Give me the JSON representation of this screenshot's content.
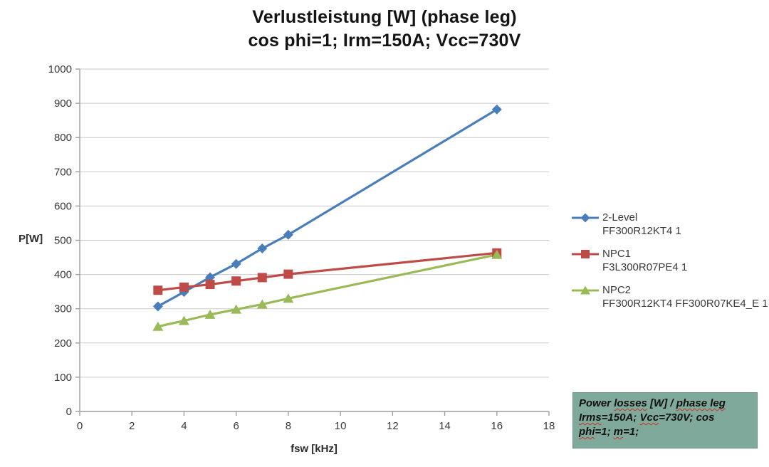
{
  "chart_data": {
    "type": "line",
    "title": "Verlustleistung [W] (phase leg)",
    "subtitle": "cos phi=1; Irm=150A; Vcc=730V",
    "xlabel": "fsw [kHz]",
    "ylabel": "P[W]",
    "xlim": [
      0,
      18
    ],
    "ylim": [
      0,
      1000
    ],
    "xticks": [
      0,
      2,
      4,
      6,
      8,
      10,
      12,
      14,
      16,
      18
    ],
    "yticks": [
      0,
      100,
      200,
      300,
      400,
      500,
      600,
      700,
      800,
      900,
      1000
    ],
    "grid": true,
    "legend_position": "right",
    "x": [
      3,
      4,
      5,
      6,
      7,
      8,
      16
    ],
    "series": [
      {
        "name": "2-Level",
        "model": "FF300R12KT4 1",
        "color": "#4A7EBB",
        "marker": "diamond",
        "values": [
          307,
          349,
          392,
          431,
          476,
          516,
          882
        ]
      },
      {
        "name": "NPC1",
        "model": "F3L300R07PE4 1",
        "color": "#BE4B48",
        "marker": "square",
        "values": [
          354,
          363,
          371,
          381,
          391,
          401,
          463
        ]
      },
      {
        "name": "NPC2",
        "model": "FF300R12KT4 FF300R07KE4_E 1",
        "color": "#9ABA58",
        "marker": "triangle",
        "values": [
          248,
          265,
          283,
          298,
          313,
          330,
          458
        ]
      }
    ]
  },
  "note": {
    "bg_color": "#7FA99B",
    "lines": [
      [
        {
          "t": "Power ",
          "wavy": false
        },
        {
          "t": "losses",
          "wavy": true
        },
        {
          "t": " [W] / ",
          "wavy": false
        },
        {
          "t": "phase leg",
          "wavy": true
        }
      ],
      [
        {
          "t": "Irms",
          "wavy": true
        },
        {
          "t": "=150A; ",
          "wavy": false
        },
        {
          "t": "Vcc",
          "wavy": true
        },
        {
          "t": "=730V; cos",
          "wavy": false
        }
      ],
      [
        {
          "t": "phi",
          "wavy": true
        },
        {
          "t": "=1; ",
          "wavy": false
        },
        {
          "t": "m",
          "wavy": true
        },
        {
          "t": "=1;",
          "wavy": false
        }
      ]
    ]
  },
  "style": {
    "grid_color": "#c9c9c9",
    "axis_color": "#9e9e9e",
    "tick_label_color": "#3a3a3a"
  }
}
